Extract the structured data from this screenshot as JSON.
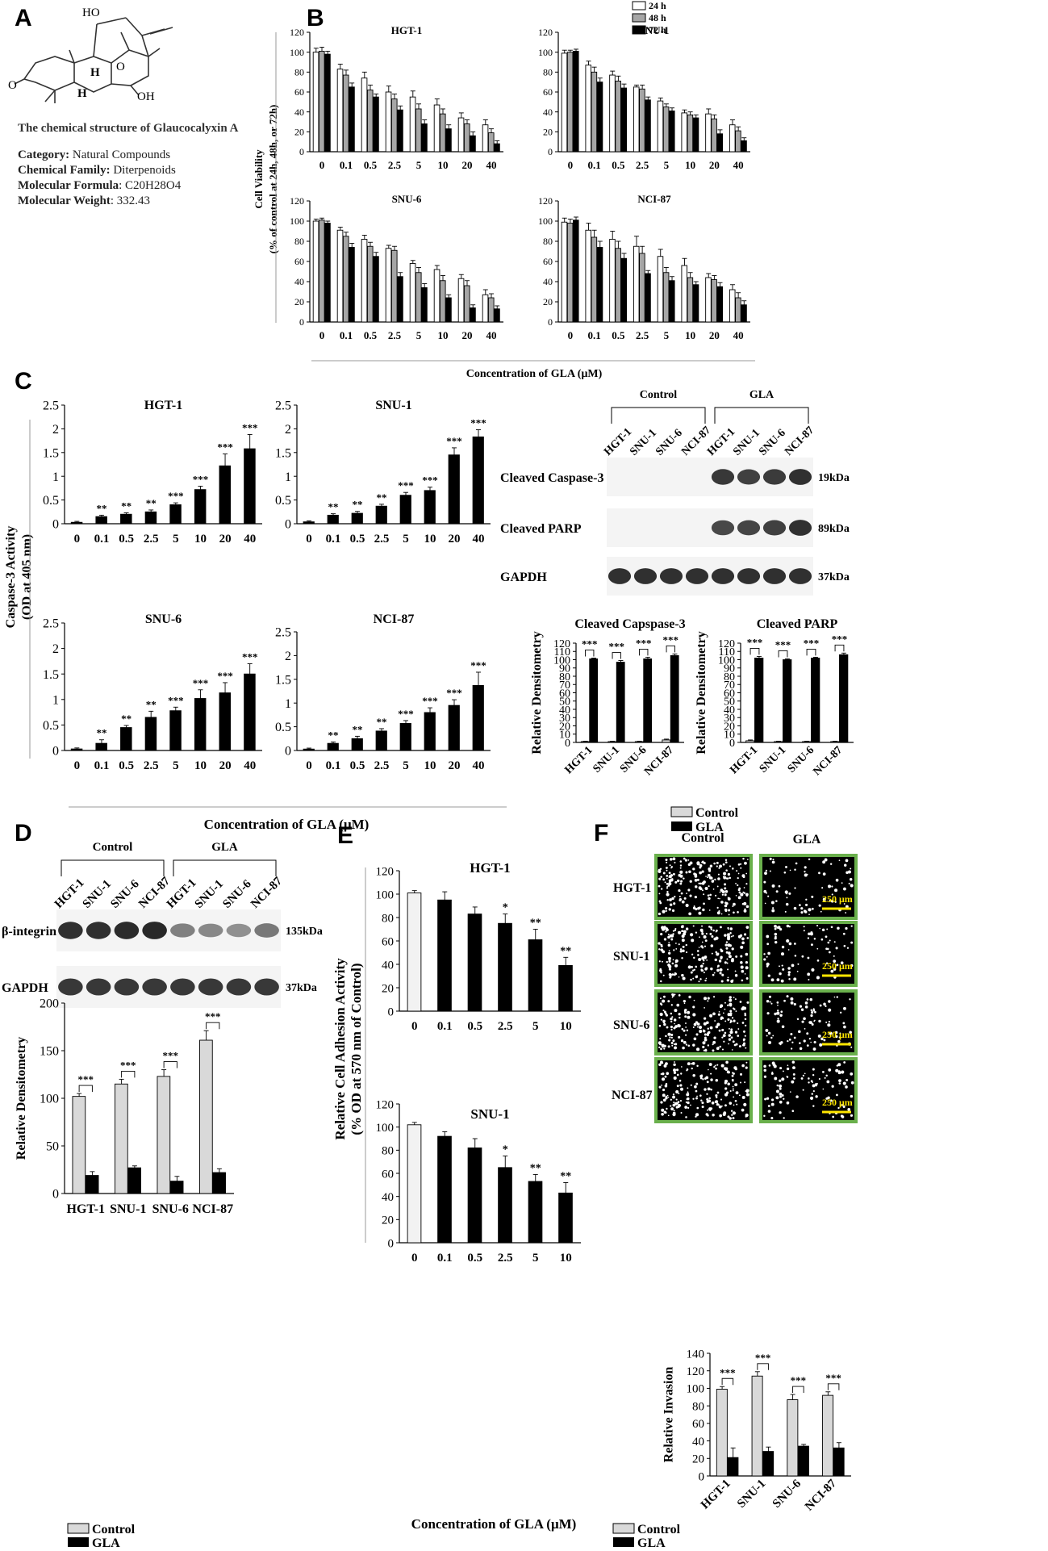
{
  "panels": {
    "A": {
      "label": "A",
      "caption": "The chemical structure of Glaucocalyxin A",
      "info": [
        {
          "key": "Category:",
          "value": " Natural Compounds"
        },
        {
          "key": "Chemical Family:",
          "value": " Diterpenoids"
        },
        {
          "key": "Molecular Formula",
          "value": ": C20H28O4"
        },
        {
          "key": "Molecular Weight",
          "value": ": 332.43"
        }
      ],
      "structure_labels": [
        "HO",
        "H",
        "O",
        "O",
        "H",
        "OH"
      ]
    },
    "B": {
      "label": "B",
      "ylabel1": "Cell Viability",
      "ylabel2": "(% of control at 24h, 48h, or 72h)",
      "xlabel": "Concentration of GLA (μM)"
    },
    "C": {
      "label": "C",
      "ylabel1": "Caspase-3 Activity",
      "ylabel2": "(OD at 405 nm)",
      "xlabel": "Concentration of GLA (μM)",
      "legend": [
        "Control",
        "GLA"
      ]
    },
    "D": {
      "label": "D",
      "legend": [
        "Control",
        "GLA"
      ]
    },
    "E": {
      "label": "E",
      "ylabel1": "Relative Cell Adhesion Activity",
      "ylabel2": "(% OD at 570 nm of Control)",
      "xlabel": "Concentration of GLA (μM)"
    },
    "F": {
      "label": "F",
      "col_headers": [
        "Control",
        "GLA"
      ],
      "rows": [
        "HGT-1",
        "SNU-1",
        "SNU-6",
        "NCI-87"
      ],
      "scalebar": "250 μm",
      "legend": [
        "Control",
        "GLA"
      ]
    }
  },
  "blots": [
    {
      "id": "C",
      "groups": [
        "Control",
        "GLA"
      ],
      "lanes": [
        "HGT-1",
        "SNU-1",
        "SNU-6",
        "NCI-87",
        "HGT-1",
        "SNU-1",
        "SNU-6",
        "NCI-87"
      ],
      "bands": [
        {
          "label": "Cleaved Caspase-3",
          "kda": "19kDa",
          "intensity": [
            0,
            0,
            0,
            0,
            0.9,
            0.85,
            0.88,
            0.95
          ]
        },
        {
          "label": "Cleaved PARP",
          "kda": "89kDa",
          "intensity": [
            0,
            0,
            0,
            0,
            0.8,
            0.82,
            0.85,
            0.95
          ]
        },
        {
          "label": "GAPDH",
          "kda": "37kDa",
          "intensity": [
            0.95,
            0.95,
            0.95,
            0.95,
            0.95,
            0.95,
            0.95,
            0.95
          ]
        }
      ]
    },
    {
      "id": "D",
      "groups": [
        "Control",
        "GLA"
      ],
      "lanes": [
        "HGT-1",
        "SNU-1",
        "SNU-6",
        "NCI-87",
        "HGT-1",
        "SNU-1",
        "SNU-6",
        "NCI-87"
      ],
      "bands": [
        {
          "label": "β-integrin",
          "kda": "135kDa",
          "intensity": [
            0.95,
            0.95,
            0.98,
            1,
            0.45,
            0.4,
            0.35,
            0.5
          ]
        },
        {
          "label": "GAPDH",
          "kda": "37kDa",
          "intensity": [
            0.9,
            0.9,
            0.9,
            0.9,
            0.9,
            0.9,
            0.9,
            0.9
          ]
        }
      ]
    }
  ],
  "chart_data": [
    {
      "id": "B1",
      "type": "bar",
      "title": "HGT-1",
      "categories": [
        "0",
        "0.1",
        "0.5",
        "2.5",
        "5",
        "10",
        "20",
        "40"
      ],
      "ylim": [
        0,
        120
      ],
      "yticks": [
        0,
        20,
        40,
        60,
        80,
        100,
        120
      ],
      "legend": {
        "placement": "top-center",
        "entries": [
          "24 h",
          "48 h",
          "72 h"
        ]
      },
      "series": [
        {
          "name": "24 h",
          "color": "#ffffff",
          "values": [
            100,
            83,
            74,
            60,
            55,
            47,
            34,
            27
          ],
          "err": [
            4,
            5,
            6,
            6,
            6,
            6,
            5,
            5
          ]
        },
        {
          "name": "48 h",
          "color": "#a6a6a6",
          "values": [
            101,
            77,
            62,
            53,
            43,
            38,
            28,
            19
          ],
          "err": [
            4,
            5,
            5,
            5,
            5,
            5,
            4,
            4
          ]
        },
        {
          "name": "72 h",
          "color": "#000000",
          "values": [
            98,
            65,
            55,
            42,
            28,
            23,
            16,
            8
          ],
          "err": [
            3,
            4,
            3,
            4,
            4,
            4,
            4,
            3
          ]
        }
      ]
    },
    {
      "id": "B2",
      "type": "bar",
      "title": "SNU-1",
      "categories": [
        "0",
        "0.1",
        "0.5",
        "2.5",
        "5",
        "10",
        "20",
        "40"
      ],
      "ylim": [
        0,
        120
      ],
      "yticks": [
        0,
        20,
        40,
        60,
        80,
        100,
        120
      ],
      "series": [
        {
          "name": "24 h",
          "color": "#ffffff",
          "values": [
            99,
            87,
            77,
            65,
            51,
            39,
            38,
            27
          ],
          "err": [
            3,
            4,
            4,
            2,
            3,
            3,
            5,
            5
          ]
        },
        {
          "name": "48 h",
          "color": "#a6a6a6",
          "values": [
            100,
            80,
            71,
            63,
            45,
            37,
            33,
            21
          ],
          "err": [
            2,
            5,
            5,
            4,
            3,
            3,
            4,
            4
          ]
        },
        {
          "name": "72 h",
          "color": "#000000",
          "values": [
            101,
            70,
            64,
            52,
            41,
            34,
            18,
            11
          ],
          "err": [
            2,
            4,
            4,
            3,
            3,
            3,
            4,
            3
          ]
        }
      ]
    },
    {
      "id": "B3",
      "type": "bar",
      "title": "SNU-6",
      "categories": [
        "0",
        "0.1",
        "0.5",
        "2.5",
        "5",
        "10",
        "20",
        "40"
      ],
      "ylim": [
        0,
        120
      ],
      "yticks": [
        0,
        20,
        40,
        60,
        80,
        100,
        120
      ],
      "series": [
        {
          "name": "24 h",
          "color": "#ffffff",
          "values": [
            100,
            91,
            82,
            73,
            58,
            52,
            43,
            27
          ],
          "err": [
            2,
            3,
            4,
            3,
            3,
            4,
            4,
            5
          ]
        },
        {
          "name": "48 h",
          "color": "#a6a6a6",
          "values": [
            101,
            85,
            75,
            71,
            49,
            41,
            36,
            24
          ],
          "err": [
            2,
            4,
            4,
            4,
            5,
            5,
            5,
            4
          ]
        },
        {
          "name": "72 h",
          "color": "#000000",
          "values": [
            98,
            74,
            65,
            45,
            34,
            24,
            14,
            13
          ],
          "err": [
            2,
            4,
            4,
            4,
            4,
            3,
            3,
            3
          ]
        }
      ]
    },
    {
      "id": "B4",
      "type": "bar",
      "title": "NCI-87",
      "categories": [
        "0",
        "0.1",
        "0.5",
        "2.5",
        "5",
        "10",
        "20",
        "40"
      ],
      "ylim": [
        0,
        120
      ],
      "yticks": [
        0,
        20,
        40,
        60,
        80,
        100,
        120
      ],
      "series": [
        {
          "name": "24 h",
          "color": "#ffffff",
          "values": [
            99,
            91,
            82,
            75,
            65,
            56,
            44,
            32
          ],
          "err": [
            4,
            7,
            8,
            10,
            7,
            7,
            4,
            5
          ]
        },
        {
          "name": "48 h",
          "color": "#a6a6a6",
          "values": [
            98,
            84,
            73,
            68,
            49,
            44,
            42,
            24
          ],
          "err": [
            4,
            7,
            7,
            7,
            5,
            5,
            4,
            5
          ]
        },
        {
          "name": "72 h",
          "color": "#000000",
          "values": [
            101,
            74,
            63,
            48,
            41,
            37,
            35,
            17
          ],
          "err": [
            3,
            6,
            5,
            3,
            4,
            3,
            4,
            4
          ]
        }
      ]
    },
    {
      "id": "C1",
      "type": "bar",
      "title": "HGT-1",
      "categories": [
        "0",
        "0.1",
        "0.5",
        "2.5",
        "5",
        "10",
        "20",
        "40"
      ],
      "ylim": [
        0,
        2.5
      ],
      "yticks": [
        0,
        0.5,
        1,
        1.5,
        2,
        2.5
      ],
      "series": [
        {
          "name": "",
          "color": "#000000",
          "values": [
            0.03,
            0.15,
            0.2,
            0.25,
            0.4,
            0.72,
            1.22,
            1.58
          ],
          "err": [
            0.02,
            0.03,
            0.03,
            0.04,
            0.04,
            0.07,
            0.25,
            0.3
          ],
          "sig": [
            "",
            "**",
            "**",
            "**",
            "***",
            "***",
            "***",
            "***"
          ]
        }
      ]
    },
    {
      "id": "C2",
      "type": "bar",
      "title": "SNU-1",
      "categories": [
        "0",
        "0.1",
        "0.5",
        "2.5",
        "5",
        "10",
        "20",
        "40"
      ],
      "ylim": [
        0,
        2.5
      ],
      "yticks": [
        0,
        0.5,
        1,
        1.5,
        2,
        2.5
      ],
      "series": [
        {
          "name": "",
          "color": "#000000",
          "values": [
            0.04,
            0.18,
            0.22,
            0.37,
            0.6,
            0.7,
            1.45,
            1.83
          ],
          "err": [
            0.02,
            0.03,
            0.04,
            0.04,
            0.06,
            0.07,
            0.15,
            0.15
          ],
          "sig": [
            "",
            "**",
            "**",
            "**",
            "***",
            "***",
            "***",
            "***"
          ]
        }
      ]
    },
    {
      "id": "C3",
      "type": "bar",
      "title": "SNU-6",
      "categories": [
        "0",
        "0.1",
        "0.5",
        "2.5",
        "5",
        "10",
        "20",
        "40"
      ],
      "ylim": [
        0,
        2.5
      ],
      "yticks": [
        0,
        0.5,
        1,
        1.5,
        2,
        2.5
      ],
      "series": [
        {
          "name": "",
          "color": "#000000",
          "values": [
            0.03,
            0.14,
            0.45,
            0.65,
            0.78,
            1.02,
            1.13,
            1.5
          ],
          "err": [
            0.02,
            0.07,
            0.04,
            0.12,
            0.07,
            0.17,
            0.2,
            0.2
          ],
          "sig": [
            "",
            "**",
            "**",
            "**",
            "***",
            "***",
            "***",
            "***"
          ]
        }
      ]
    },
    {
      "id": "C4",
      "type": "bar",
      "title": "NCI-87",
      "categories": [
        "0",
        "0.1",
        "0.5",
        "2.5",
        "5",
        "10",
        "20",
        "40"
      ],
      "ylim": [
        0,
        2.5
      ],
      "yticks": [
        0,
        0.5,
        1,
        1.5,
        2,
        2.5
      ],
      "series": [
        {
          "name": "",
          "color": "#000000",
          "values": [
            0.03,
            0.15,
            0.25,
            0.41,
            0.57,
            0.8,
            0.95,
            1.37
          ],
          "err": [
            0.02,
            0.03,
            0.05,
            0.05,
            0.06,
            0.1,
            0.12,
            0.28
          ],
          "sig": [
            "",
            "**",
            "**",
            "**",
            "***",
            "***",
            "***",
            "***"
          ]
        }
      ]
    },
    {
      "id": "C5",
      "type": "bar",
      "title": "Cleaved Capspase-3",
      "ylabel": "Relative Densitometry",
      "categories": [
        "HGT-1",
        "SNU-1",
        "SNU-6",
        "NCI-87"
      ],
      "ylim": [
        0,
        120
      ],
      "yticks": [
        0,
        10,
        20,
        30,
        40,
        50,
        60,
        70,
        80,
        90,
        100,
        110,
        120
      ],
      "series": [
        {
          "name": "Control",
          "color": "#d9d9d9",
          "values": [
            1,
            1,
            1,
            3
          ],
          "err": [
            0.5,
            0.5,
            0.5,
            1
          ]
        },
        {
          "name": "GLA",
          "color": "#000000",
          "values": [
            101,
            97,
            101,
            105
          ],
          "err": [
            1,
            2,
            2,
            2
          ]
        }
      ],
      "sig": [
        "***",
        "***",
        "***",
        "***"
      ]
    },
    {
      "id": "C6",
      "type": "bar",
      "title": "Cleaved PARP",
      "ylabel": "Relative Densitometry",
      "categories": [
        "HGT-1",
        "SNU-1",
        "SNU-6",
        "NCI-87"
      ],
      "ylim": [
        0,
        120
      ],
      "yticks": [
        0,
        10,
        20,
        30,
        40,
        50,
        60,
        70,
        80,
        90,
        100,
        110,
        120
      ],
      "series": [
        {
          "name": "Control",
          "color": "#d9d9d9",
          "values": [
            2,
            1,
            1,
            1
          ],
          "err": [
            1,
            0.5,
            0.5,
            0.5
          ]
        },
        {
          "name": "GLA",
          "color": "#000000",
          "values": [
            102,
            100,
            102,
            106
          ],
          "err": [
            2,
            1,
            1,
            2
          ]
        }
      ],
      "sig": [
        "***",
        "***",
        "***",
        "***"
      ]
    },
    {
      "id": "D1",
      "type": "bar",
      "ylabel": "Relative Densitometry",
      "categories": [
        "HGT-1",
        "SNU-1",
        "SNU-6",
        "NCI-87"
      ],
      "ylim": [
        0,
        200
      ],
      "yticks": [
        0,
        50,
        100,
        150,
        200
      ],
      "series": [
        {
          "name": "Control",
          "color": "#d9d9d9",
          "values": [
            102,
            115,
            123,
            161
          ],
          "err": [
            3,
            5,
            7,
            10
          ]
        },
        {
          "name": "GLA",
          "color": "#000000",
          "values": [
            19,
            27,
            13,
            22
          ],
          "err": [
            4,
            2,
            5,
            4
          ]
        }
      ],
      "sig": [
        "***",
        "***",
        "***",
        "***"
      ]
    },
    {
      "id": "E1",
      "type": "bar",
      "title": "HGT-1",
      "categories": [
        "0",
        "0.1",
        "0.5",
        "2.5",
        "5",
        "10"
      ],
      "ylim": [
        0,
        120
      ],
      "yticks": [
        0,
        20,
        40,
        60,
        80,
        100,
        120
      ],
      "series": [
        {
          "name": "",
          "colors": [
            "#f2f2f2",
            "#000000",
            "#000000",
            "#000000",
            "#000000",
            "#000000"
          ],
          "values": [
            101,
            95,
            83,
            75,
            61,
            39
          ],
          "err": [
            2,
            7,
            6,
            8,
            9,
            7
          ],
          "sig": [
            "",
            "",
            "",
            "*",
            "**",
            "**"
          ]
        }
      ]
    },
    {
      "id": "E2",
      "type": "bar",
      "title": "SNU-1",
      "categories": [
        "0",
        "0.1",
        "0.5",
        "2.5",
        "5",
        "10"
      ],
      "ylim": [
        0,
        120
      ],
      "yticks": [
        0,
        20,
        40,
        60,
        80,
        100,
        120
      ],
      "series": [
        {
          "name": "",
          "colors": [
            "#f2f2f2",
            "#000000",
            "#000000",
            "#000000",
            "#000000",
            "#000000"
          ],
          "values": [
            102,
            92,
            82,
            65,
            53,
            43
          ],
          "err": [
            2,
            4,
            8,
            10,
            6,
            9
          ],
          "sig": [
            "",
            "",
            "",
            "*",
            "**",
            "**"
          ]
        }
      ]
    },
    {
      "id": "F1",
      "type": "bar",
      "ylabel": "Relative Invasion",
      "categories": [
        "HGT-1",
        "SNU-1",
        "SNU-6",
        "NCI-87"
      ],
      "ylim": [
        0,
        140
      ],
      "yticks": [
        0,
        20,
        40,
        60,
        80,
        100,
        120,
        140
      ],
      "series": [
        {
          "name": "Control",
          "color": "#d9d9d9",
          "values": [
            99,
            114,
            87,
            92
          ],
          "err": [
            3,
            5,
            6,
            4
          ]
        },
        {
          "name": "GLA",
          "color": "#000000",
          "values": [
            21,
            28,
            34,
            32
          ],
          "err": [
            11,
            5,
            2,
            6
          ]
        }
      ],
      "sig": [
        "***",
        "***",
        "***",
        "***"
      ]
    }
  ]
}
